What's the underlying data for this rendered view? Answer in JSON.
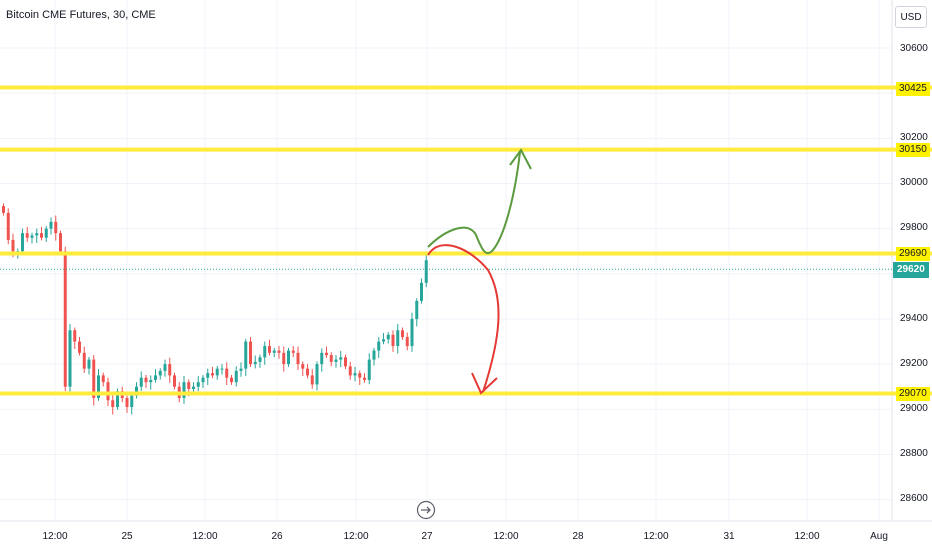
{
  "header": {
    "title": "Bitcoin CME Futures, 30, CME",
    "currency_button": "USD"
  },
  "y_axis": {
    "ticks": [
      "30600",
      "30200",
      "30000",
      "29800",
      "29400",
      "29200",
      "29000",
      "28800",
      "28600"
    ]
  },
  "x_axis": {
    "ticks": [
      "12:00",
      "25",
      "12:00",
      "26",
      "12:00",
      "27",
      "12:00",
      "28",
      "12:00",
      "31",
      "12:00",
      "Aug"
    ]
  },
  "levels": [
    {
      "value": "30425",
      "price": 30425
    },
    {
      "value": "30150",
      "price": 30150
    },
    {
      "value": "29690",
      "price": 29690
    },
    {
      "value": "29070",
      "price": 29070
    }
  ],
  "last_price": {
    "label": "29620",
    "price": 29620
  },
  "colors": {
    "up": "#26a69a",
    "down": "#ef5350",
    "level_line": "#ffeb3b",
    "arrow_up": "#4caf50",
    "arrow_down": "#f23645",
    "grid": "#f0f3fa"
  },
  "goto_realtime_icon": "circle-arrow-right-icon",
  "chart_data": {
    "type": "candlestick",
    "title": "Bitcoin CME Futures, 30, CME",
    "ylim": [
      28480,
      30700
    ],
    "closes": [
      29870,
      29750,
      29700,
      29700,
      29780,
      29760,
      29770,
      29780,
      29760,
      29800,
      29830,
      29780,
      29700,
      29100,
      29350,
      29300,
      29250,
      29180,
      29220,
      29050,
      29150,
      29120,
      29040,
      29010,
      29080,
      29050,
      29010,
      29060,
      29100,
      29140,
      29120,
      29130,
      29150,
      29170,
      29200,
      29150,
      29100,
      29050,
      29120,
      29090,
      29100,
      29120,
      29140,
      29160,
      29150,
      29180,
      29180,
      29140,
      29120,
      29170,
      29180,
      29300,
      29200,
      29210,
      29230,
      29280,
      29250,
      29260,
      29250,
      29200,
      29260,
      29250,
      29200,
      29180,
      29150,
      29110,
      29200,
      29250,
      29240,
      29210,
      29220,
      29230,
      29190,
      29150,
      29160,
      29140,
      29130,
      29220,
      29260,
      29300,
      29310,
      29330,
      29280,
      29350,
      29320,
      29280,
      29400,
      29480,
      29560,
      29660
    ]
  }
}
